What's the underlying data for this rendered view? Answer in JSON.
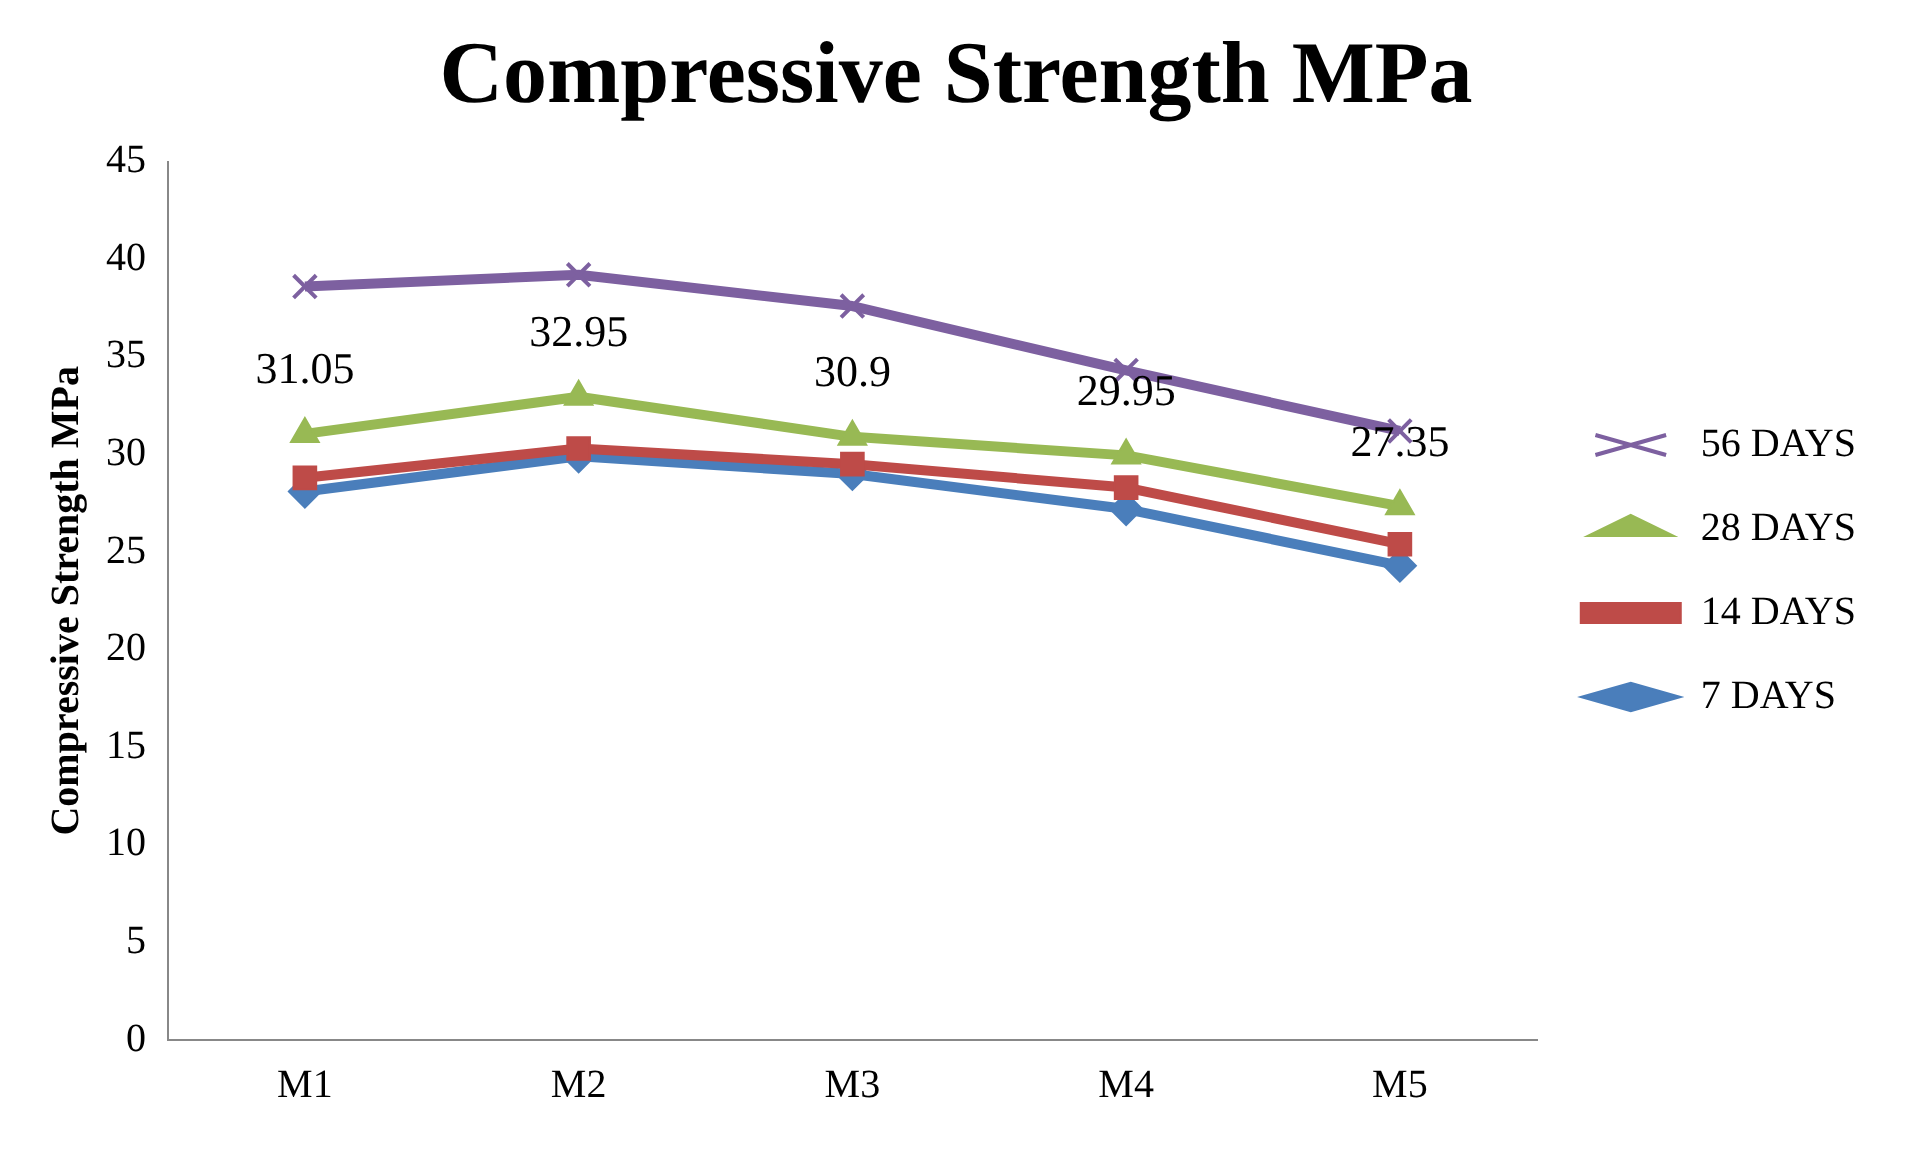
{
  "chart_data": {
    "type": "line",
    "title": "Compressive Strength MPa",
    "ylabel": "Compressive Strength MPa",
    "categories": [
      "M1",
      "M2",
      "M3",
      "M4",
      "M5"
    ],
    "ylim": [
      0,
      45
    ],
    "yticks": [
      0,
      5,
      10,
      15,
      20,
      25,
      30,
      35,
      40,
      45
    ],
    "grid": false,
    "legend": "right",
    "series": [
      {
        "name": "7 DAYS",
        "color": "#4a7ebb",
        "marker": "diamond",
        "values": [
          28.1,
          29.9,
          29.0,
          27.2,
          24.3
        ]
      },
      {
        "name": "14 DAYS",
        "color": "#be4b48",
        "marker": "square",
        "values": [
          28.8,
          30.3,
          29.5,
          28.3,
          25.4
        ]
      },
      {
        "name": "28 DAYS",
        "color": "#98b954",
        "marker": "triangle",
        "values": [
          31.05,
          32.95,
          30.9,
          29.95,
          27.35
        ],
        "value_labels": [
          "31.05",
          "32.95",
          "30.9",
          "29.95",
          "27.35"
        ]
      },
      {
        "name": "56 DAYS",
        "color": "#7d60a0",
        "marker": "cross",
        "values": [
          38.6,
          39.2,
          37.6,
          34.3,
          31.2
        ]
      }
    ]
  }
}
